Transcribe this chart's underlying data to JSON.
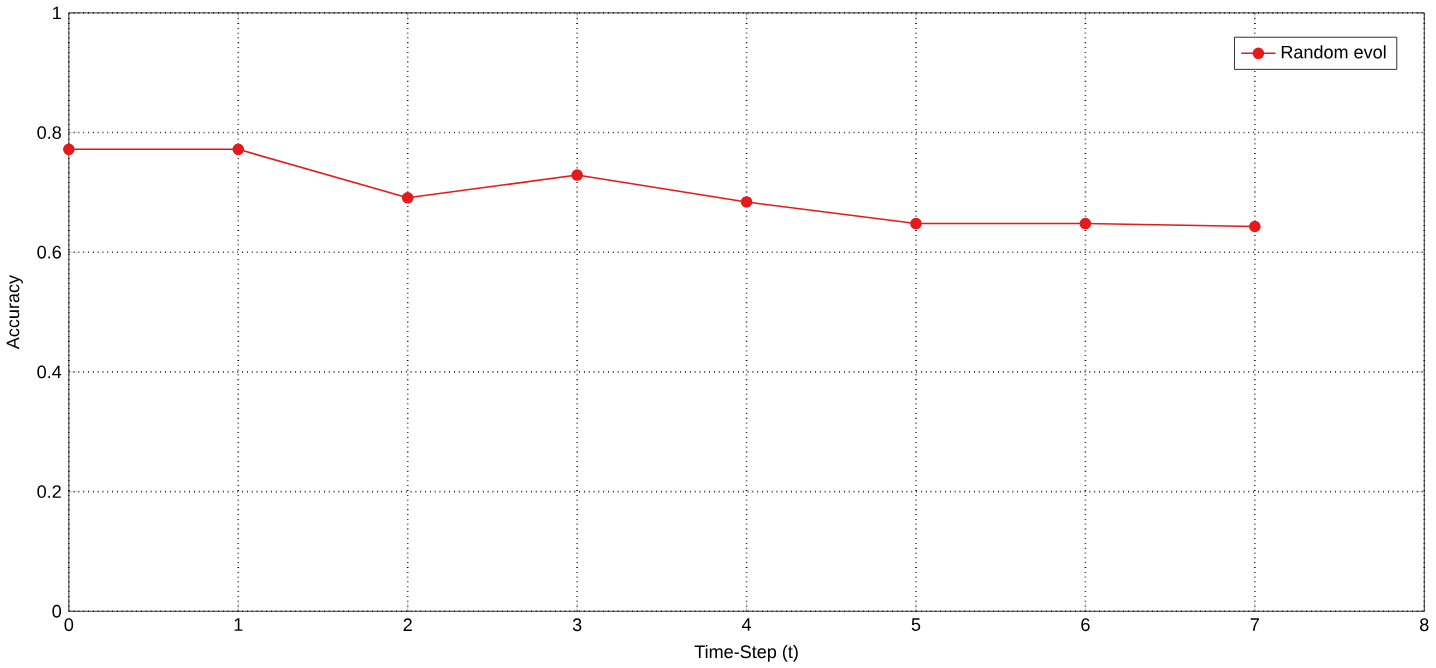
{
  "chart_data": {
    "type": "line",
    "xlabel": "Time-Step (t)",
    "ylabel": "Accuracy",
    "x": [
      0,
      1,
      2,
      3,
      4,
      5,
      6,
      7
    ],
    "series": [
      {
        "name": "Random evol",
        "color": "#e41a1c",
        "values": [
          0.772,
          0.772,
          0.691,
          0.729,
          0.684,
          0.648,
          0.648,
          0.643
        ]
      }
    ],
    "xlim": [
      0,
      8
    ],
    "ylim": [
      0,
      1
    ],
    "xticks": [
      0,
      1,
      2,
      3,
      4,
      5,
      6,
      7,
      8
    ],
    "yticks": [
      0,
      0.2,
      0.4,
      0.6,
      0.8,
      1
    ],
    "grid": true,
    "legend": "top right",
    "marker": "circle",
    "line_style": "solid"
  }
}
